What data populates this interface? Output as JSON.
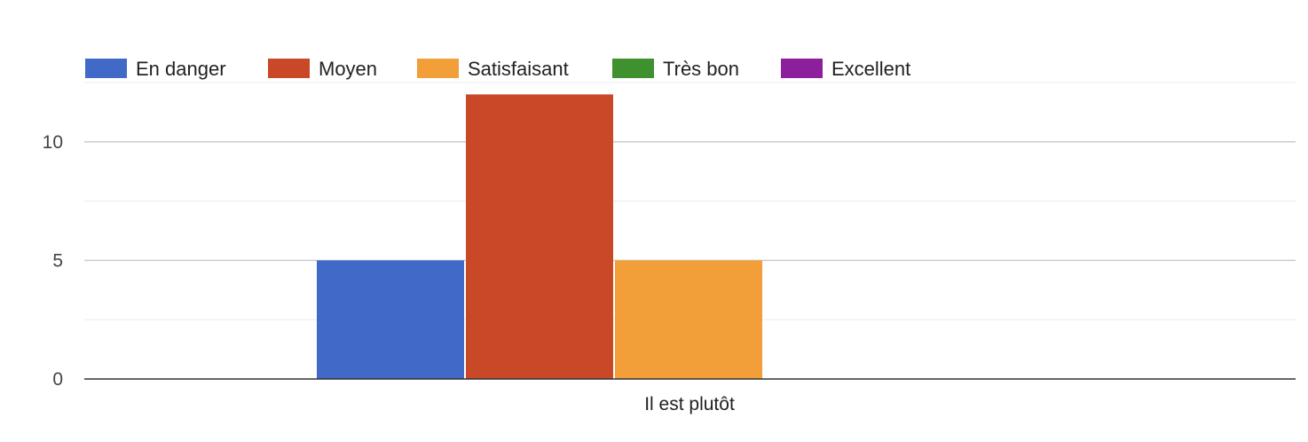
{
  "chart_data": {
    "type": "bar",
    "title": "",
    "xlabel": "",
    "ylabel": "",
    "categories": [
      "Il est plutôt"
    ],
    "series": [
      {
        "name": "En danger",
        "color": "#4169c8",
        "values": [
          5
        ]
      },
      {
        "name": "Moyen",
        "color": "#c94827",
        "values": [
          12
        ]
      },
      {
        "name": "Satisfaisant",
        "color": "#f29e39",
        "values": [
          5
        ]
      },
      {
        "name": "Très bon",
        "color": "#3f9130",
        "values": [
          0
        ]
      },
      {
        "name": "Excellent",
        "color": "#8d1f9c",
        "values": [
          0
        ]
      }
    ],
    "ylim": [
      0,
      12.5
    ],
    "yticks": [
      0,
      5,
      10
    ],
    "minor_gridlines": [
      2.5,
      7.5,
      12.5
    ],
    "grid": true,
    "legend_position": "top-left"
  }
}
